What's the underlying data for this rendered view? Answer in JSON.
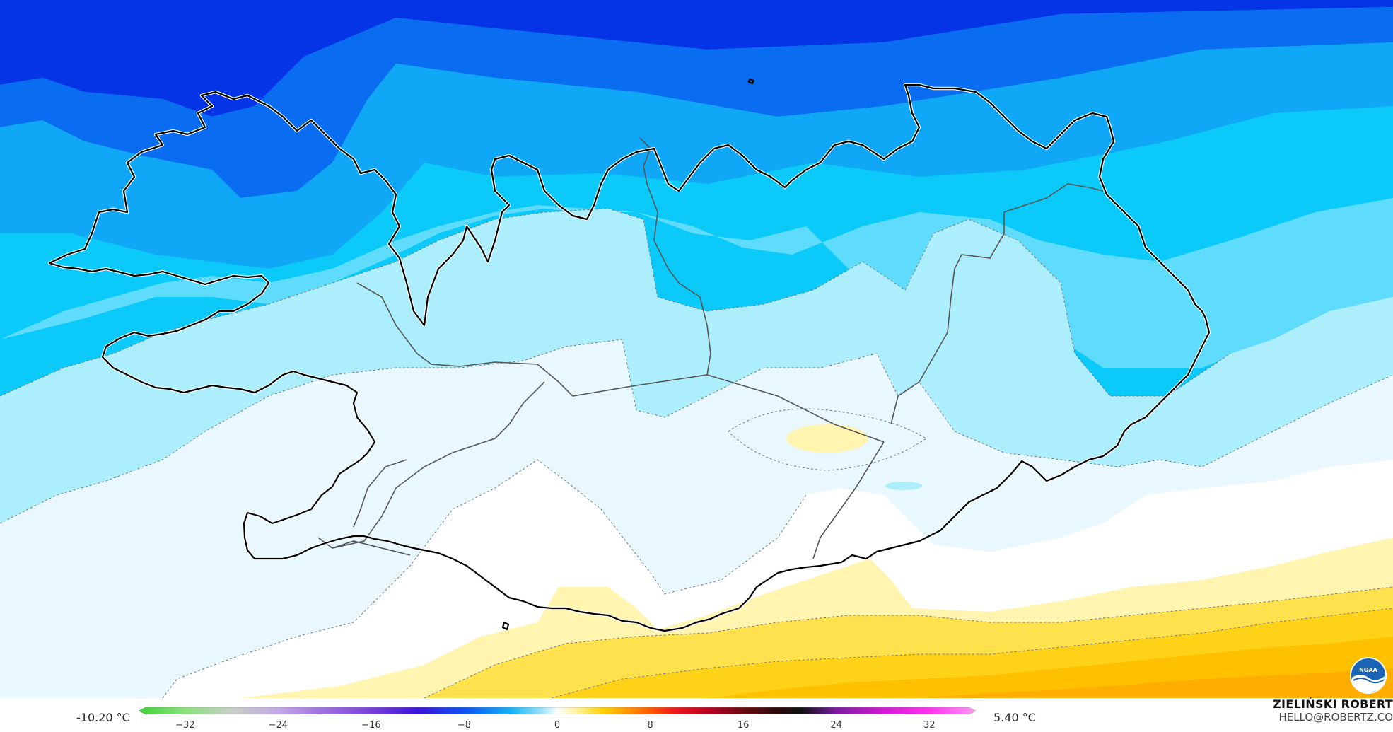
{
  "legend": {
    "min_value": "-10.20 °C",
    "max_value": "5.40 °C",
    "ticks": [
      "−32",
      "−24",
      "−16",
      "−8",
      "0",
      "8",
      "16",
      "24",
      "32"
    ],
    "tick_values": [
      -32,
      -24,
      -16,
      -8,
      0,
      8,
      16,
      24,
      32
    ],
    "range": [
      -36,
      36
    ],
    "stops": [
      {
        "v": -36,
        "c": "#3fd13a"
      },
      {
        "v": -32,
        "c": "#8be27d"
      },
      {
        "v": -28,
        "c": "#c9cfc7"
      },
      {
        "v": -24,
        "c": "#c3a9e6"
      },
      {
        "v": -20,
        "c": "#9d6fe0"
      },
      {
        "v": -16,
        "c": "#7b3fd8"
      },
      {
        "v": -12,
        "c": "#3a14d8"
      },
      {
        "v": -8,
        "c": "#0e52f0"
      },
      {
        "v": -4,
        "c": "#13b3f5"
      },
      {
        "v": -1,
        "c": "#aee9fb"
      },
      {
        "v": 0,
        "c": "#ffffff"
      },
      {
        "v": 2,
        "c": "#fff08a"
      },
      {
        "v": 4,
        "c": "#ffd000"
      },
      {
        "v": 6,
        "c": "#ff9800"
      },
      {
        "v": 8,
        "c": "#ff5a00"
      },
      {
        "v": 10,
        "c": "#ef1a1a"
      },
      {
        "v": 13,
        "c": "#b80020"
      },
      {
        "v": 16,
        "c": "#6a0c12"
      },
      {
        "v": 19,
        "c": "#2a0808"
      },
      {
        "v": 21,
        "c": "#111111"
      },
      {
        "v": 24,
        "c": "#7a1aa0"
      },
      {
        "v": 28,
        "c": "#d21ad2"
      },
      {
        "v": 32,
        "c": "#ff33ee"
      },
      {
        "v": 36,
        "c": "#ff99f5"
      }
    ]
  },
  "author": {
    "name": "ZIELIŃSKI ROBERT",
    "email": "HELLO@ROBERTZ.CO"
  },
  "logo": {
    "text": "NOAA",
    "icon": "noaa-logo-icon"
  },
  "colors": {
    "deep_blue": "#0434e6",
    "blue": "#0a6cf0",
    "azure": "#10a8f6",
    "cyan": "#0bcaf9",
    "light_cyan": "#5fdcfb",
    "pale_cyan": "#adeefd",
    "ice": "#e8f8fe",
    "white": "#ffffff",
    "pale_yellow": "#fff4b0",
    "yellow": "#ffe14d",
    "gold": "#ffd21a",
    "amber": "#ffc000",
    "orange": "#ffae00",
    "coastline": "#000000",
    "borders": "#555555"
  }
}
